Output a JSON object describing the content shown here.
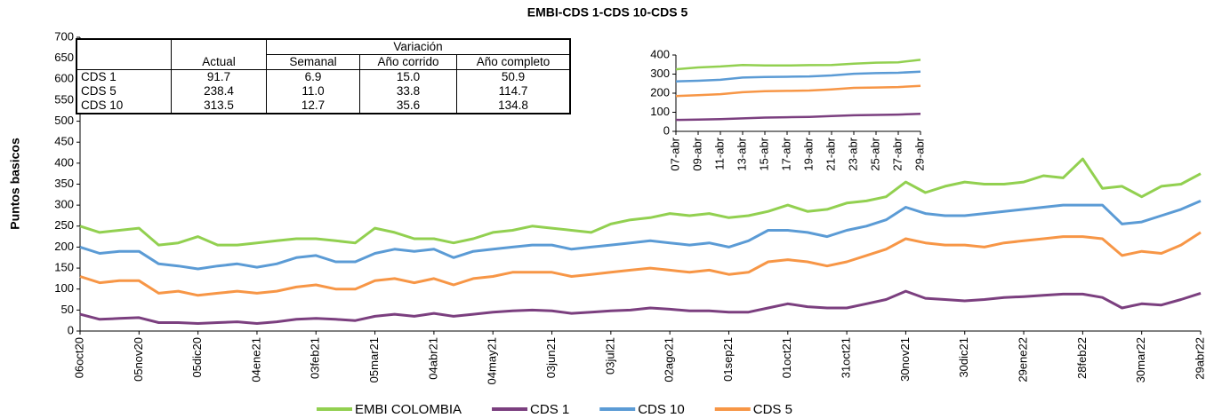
{
  "chart_data": [
    {
      "type": "line",
      "title": "EMBI-CDS 1-CDS 10-CDS 5",
      "y_label": "Puntos basicos",
      "categories": [
        "06oct20",
        null,
        null,
        "05nov20",
        null,
        null,
        "05dic20",
        null,
        null,
        "04ene21",
        null,
        null,
        "03feb21",
        null,
        null,
        "05mar21",
        null,
        null,
        "04abr21",
        null,
        null,
        "04may21",
        null,
        null,
        "03jun21",
        null,
        null,
        "03jul21",
        null,
        null,
        "02ago21",
        null,
        null,
        "01sep21",
        null,
        null,
        "01oct21",
        null,
        null,
        "31oct21",
        null,
        null,
        "30nov21",
        null,
        null,
        "30dic21",
        null,
        null,
        "29ene22",
        null,
        null,
        "28feb22",
        null,
        null,
        "30mar22",
        null,
        null,
        "29abr22"
      ],
      "series": [
        {
          "name": "EMBI COLOMBIA",
          "color": "#92d050",
          "values": [
            250,
            235,
            240,
            245,
            205,
            210,
            225,
            205,
            205,
            210,
            215,
            220,
            220,
            215,
            210,
            245,
            235,
            220,
            220,
            210,
            220,
            235,
            240,
            250,
            245,
            240,
            235,
            255,
            265,
            270,
            280,
            275,
            280,
            270,
            275,
            285,
            300,
            285,
            290,
            305,
            310,
            320,
            355,
            330,
            345,
            355,
            350,
            350,
            355,
            370,
            365,
            410,
            340,
            345,
            320,
            345,
            350,
            375
          ]
        },
        {
          "name": "CDS 1",
          "color": "#7b3f7f",
          "values": [
            40,
            28,
            30,
            32,
            20,
            20,
            18,
            20,
            22,
            18,
            22,
            28,
            30,
            28,
            25,
            35,
            40,
            35,
            42,
            35,
            40,
            45,
            48,
            50,
            48,
            42,
            45,
            48,
            50,
            55,
            52,
            48,
            48,
            45,
            45,
            55,
            65,
            58,
            55,
            55,
            65,
            75,
            95,
            78,
            75,
            72,
            75,
            80,
            82,
            85,
            88,
            88,
            80,
            55,
            65,
            62,
            75,
            90
          ]
        },
        {
          "name": "CDS 10",
          "color": "#5b9bd5",
          "values": [
            200,
            185,
            190,
            190,
            160,
            155,
            148,
            155,
            160,
            152,
            160,
            175,
            180,
            165,
            165,
            185,
            195,
            190,
            195,
            175,
            190,
            195,
            200,
            205,
            205,
            195,
            200,
            205,
            210,
            215,
            210,
            205,
            210,
            200,
            215,
            240,
            240,
            235,
            225,
            240,
            250,
            265,
            295,
            280,
            275,
            275,
            280,
            285,
            290,
            295,
            300,
            300,
            300,
            255,
            260,
            275,
            290,
            310
          ]
        },
        {
          "name": "CDS 5",
          "color": "#f79646",
          "values": [
            130,
            115,
            120,
            120,
            90,
            95,
            85,
            90,
            95,
            90,
            95,
            105,
            110,
            100,
            100,
            120,
            125,
            115,
            125,
            110,
            125,
            130,
            140,
            140,
            140,
            130,
            135,
            140,
            145,
            150,
            145,
            140,
            145,
            135,
            140,
            165,
            170,
            165,
            155,
            165,
            180,
            195,
            220,
            210,
            205,
            205,
            200,
            210,
            215,
            220,
            225,
            225,
            220,
            180,
            190,
            185,
            205,
            235
          ]
        }
      ],
      "ylim": [
        0,
        700
      ],
      "yticks": [
        0,
        50,
        100,
        150,
        200,
        250,
        300,
        350,
        400,
        450,
        500,
        550,
        600,
        650,
        700
      ],
      "legend": "bottom"
    },
    {
      "type": "line",
      "categories": [
        "07-abr",
        "09-abr",
        "11-abr",
        "13-abr",
        "15-abr",
        "17-abr",
        "19-abr",
        "21-abr",
        "23-abr",
        "25-abr",
        "27-abr",
        "29-abr"
      ],
      "series": [
        {
          "color": "#92d050",
          "values": [
            325,
            335,
            340,
            348,
            345,
            345,
            347,
            348,
            355,
            360,
            362,
            375
          ]
        },
        {
          "color": "#7b3f7f",
          "values": [
            60,
            62,
            64,
            68,
            72,
            74,
            76,
            80,
            84,
            86,
            88,
            92
          ]
        },
        {
          "color": "#5b9bd5",
          "values": [
            262,
            265,
            270,
            282,
            285,
            286,
            288,
            293,
            302,
            305,
            307,
            313
          ]
        },
        {
          "color": "#f79646",
          "values": [
            185,
            190,
            195,
            205,
            210,
            212,
            214,
            220,
            228,
            230,
            232,
            238
          ]
        }
      ],
      "ylim": [
        0,
        400
      ],
      "yticks": [
        0,
        100,
        200,
        300,
        400
      ]
    }
  ],
  "table": {
    "group_header": "Variación",
    "headers": [
      "Actual",
      "Semanal",
      "Año corrido",
      "Año completo"
    ],
    "rows": [
      [
        "CDS 1",
        "91.7",
        "6.9",
        "15.0",
        "50.9"
      ],
      [
        "CDS 5",
        "238.4",
        "11.0",
        "33.8",
        "114.7"
      ],
      [
        "CDS 10",
        "313.5",
        "12.7",
        "35.6",
        "134.8"
      ]
    ]
  }
}
